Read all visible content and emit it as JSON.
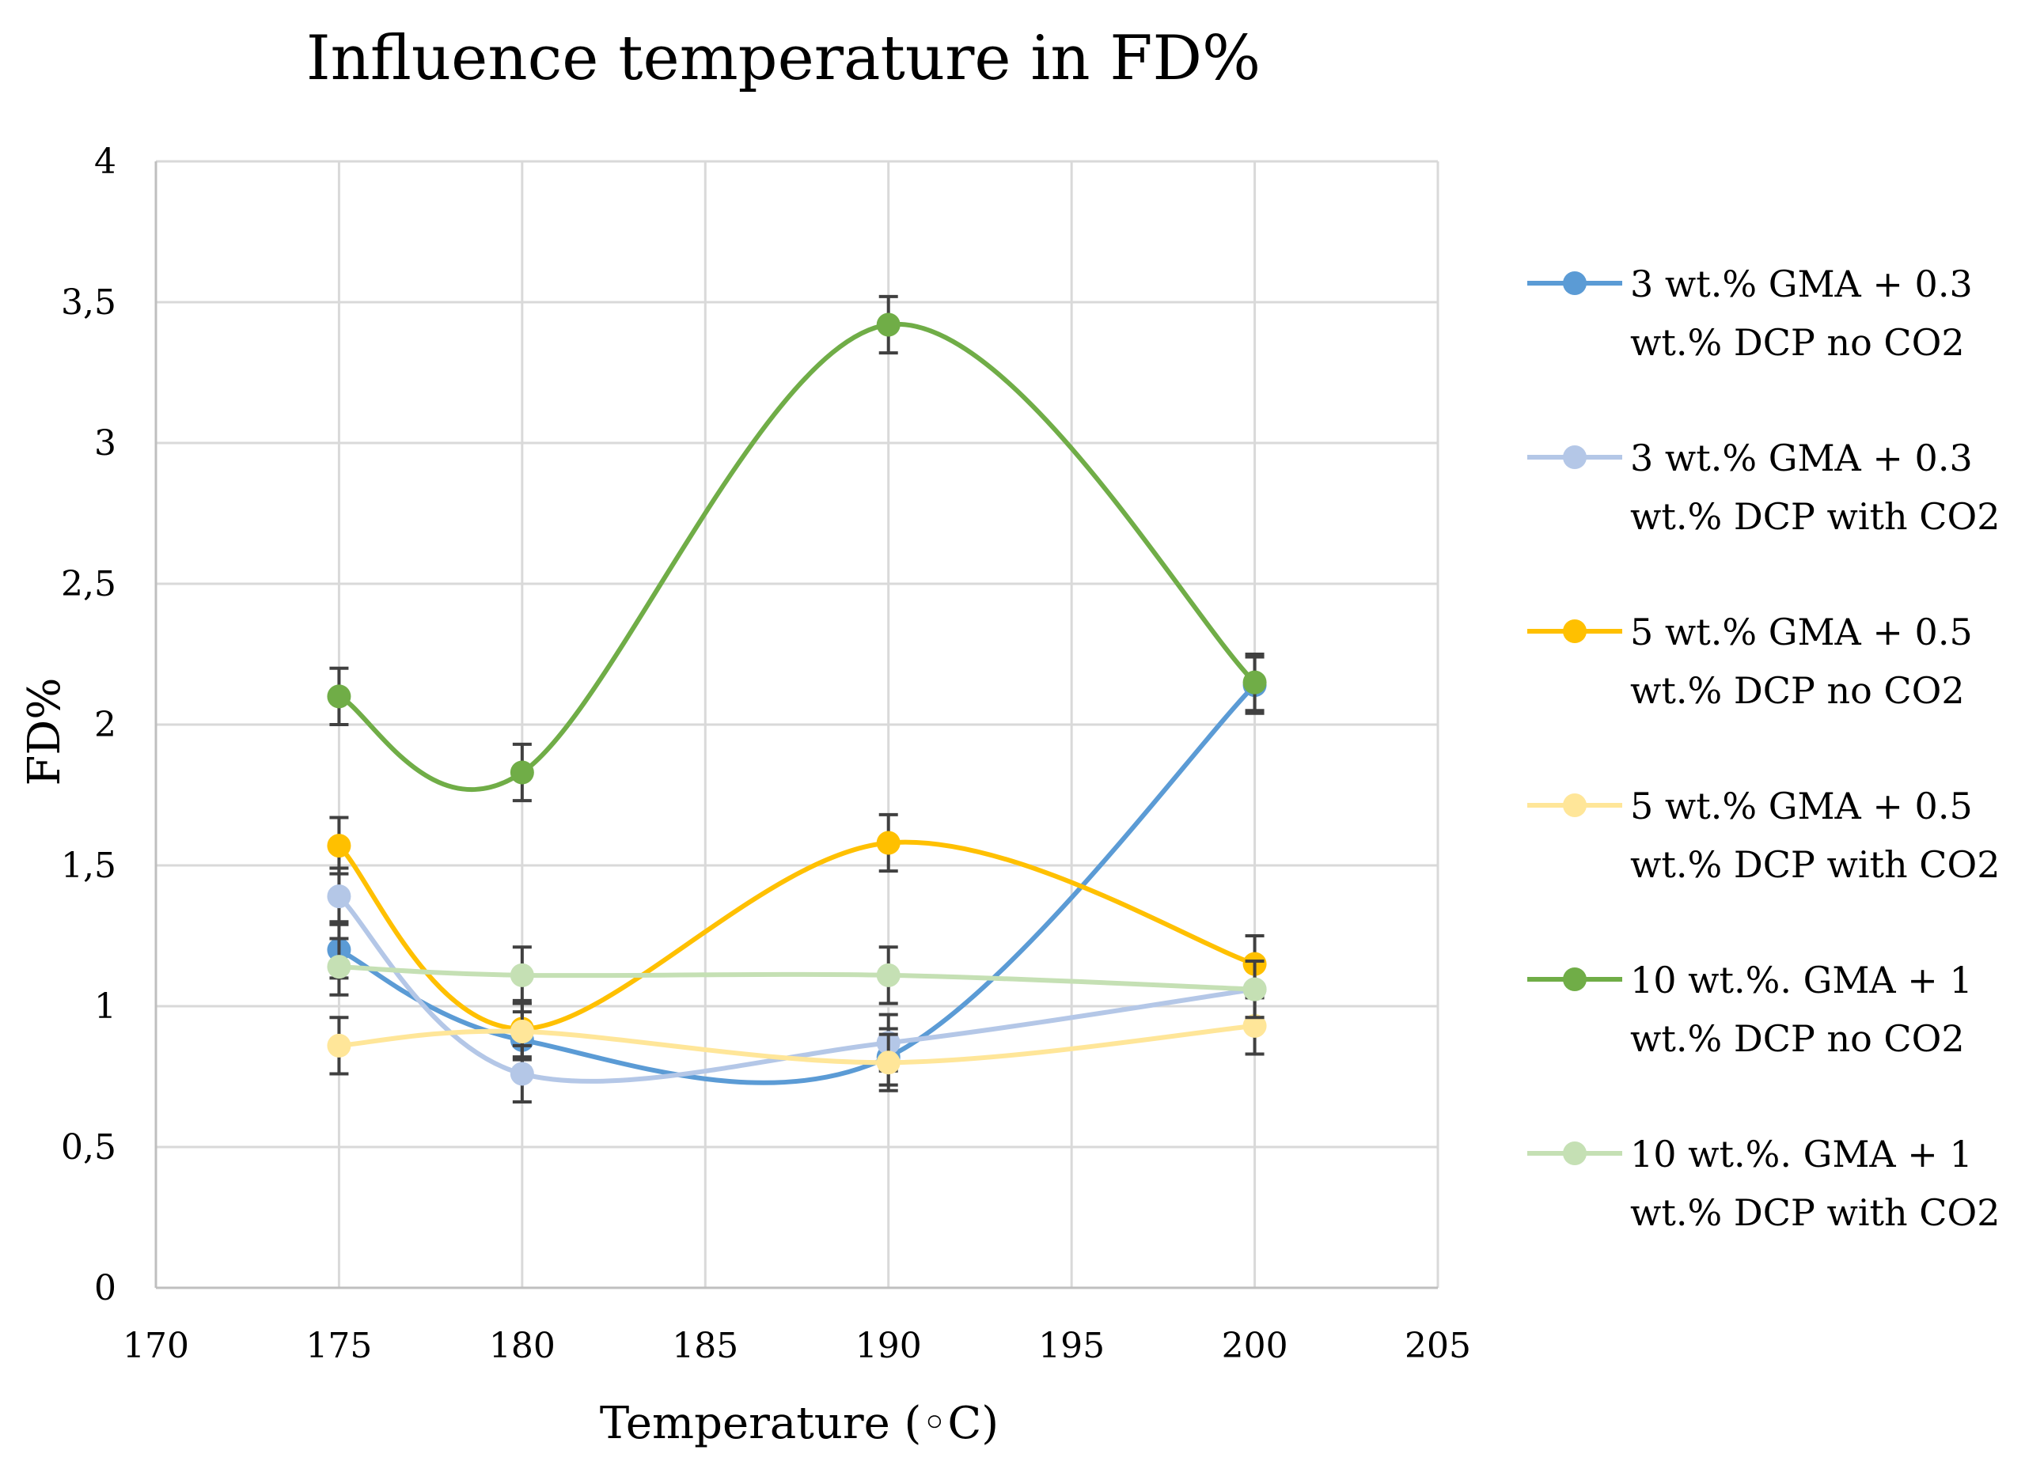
{
  "chart_data": {
    "type": "line",
    "title": "Influence temperature in FD%",
    "xlabel": "Temperature (◦C)",
    "ylabel": "FD%",
    "xlim": [
      170,
      205
    ],
    "ylim": [
      0,
      4
    ],
    "xticks": [
      "170",
      "175",
      "180",
      "185",
      "190",
      "195",
      "200",
      "205"
    ],
    "yticks": [
      "0",
      "0,5",
      "1",
      "1,5",
      "2",
      "2,5",
      "3",
      "3,5",
      "4"
    ],
    "grid": true,
    "legend": "right",
    "error_bar": 0.1,
    "x": [
      175,
      180,
      190,
      200
    ],
    "series": [
      {
        "name": "3 wt.% GMA + 0.3 wt.% DCP no CO2",
        "legend_lines": [
          "3 wt.% GMA + 0.3",
          "wt.% DCP no CO2"
        ],
        "color": "#5b9bd5",
        "values": [
          1.2,
          0.88,
          0.82,
          2.14
        ]
      },
      {
        "name": "3 wt.% GMA + 0.3 wt.% DCP with CO2",
        "legend_lines": [
          "3 wt.% GMA + 0.3",
          "wt.% DCP with CO2"
        ],
        "color": "#b4c7e7",
        "values": [
          1.39,
          0.76,
          0.87,
          1.06
        ]
      },
      {
        "name": "5 wt.% GMA + 0.5 wt.% DCP no CO2",
        "legend_lines": [
          "5 wt.% GMA + 0.5",
          "wt.% DCP no CO2"
        ],
        "color": "#ffc000",
        "values": [
          1.57,
          0.92,
          1.58,
          1.15
        ]
      },
      {
        "name": "5 wt.% GMA + 0.5 wt.% DCP with CO2",
        "legend_lines": [
          "5 wt.% GMA + 0.5",
          "wt.% DCP with CO2"
        ],
        "color": "#ffe699",
        "values": [
          0.86,
          0.91,
          0.8,
          0.93
        ]
      },
      {
        "name": "10 wt.%. GMA + 1 wt.% DCP no CO2",
        "legend_lines": [
          "10 wt.%. GMA + 1",
          "wt.% DCP no CO2"
        ],
        "color": "#70ad47",
        "values": [
          2.1,
          1.83,
          3.42,
          2.15
        ]
      },
      {
        "name": "10 wt.%. GMA + 1 wt.% DCP with CO2",
        "legend_lines": [
          "10 wt.%. GMA + 1",
          "wt.% DCP with CO2"
        ],
        "color": "#c5e0b4",
        "values": [
          1.14,
          1.11,
          1.11,
          1.06
        ]
      }
    ]
  }
}
